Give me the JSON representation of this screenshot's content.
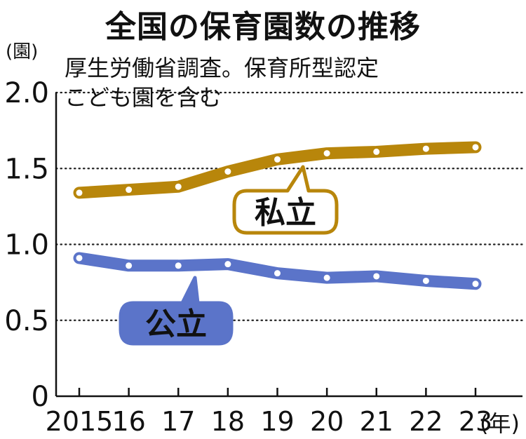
{
  "title": "全国の保育園数の推移",
  "note_lines": [
    "厚生労働省調査。保育所型認定",
    "こども園を含む"
  ],
  "chart_data": {
    "type": "line",
    "x": [
      "2015",
      "16",
      "17",
      "18",
      "19",
      "20",
      "21",
      "22",
      "23"
    ],
    "x_unit": "(年)",
    "y_unit": "(園)",
    "y_ticks": [
      "0",
      "0.5",
      "1.0",
      "1.5",
      "2.0"
    ],
    "ylim": [
      0,
      2.0
    ],
    "grid": "dotted horizontal",
    "series": [
      {
        "name": "私立",
        "values": [
          1.34,
          1.36,
          1.38,
          1.48,
          1.56,
          1.6,
          1.61,
          1.63,
          1.64
        ],
        "color": "#B8860B"
      },
      {
        "name": "公立",
        "values": [
          0.91,
          0.86,
          0.86,
          0.87,
          0.81,
          0.78,
          0.79,
          0.76,
          0.74
        ],
        "color": "#5B74C9"
      }
    ]
  }
}
